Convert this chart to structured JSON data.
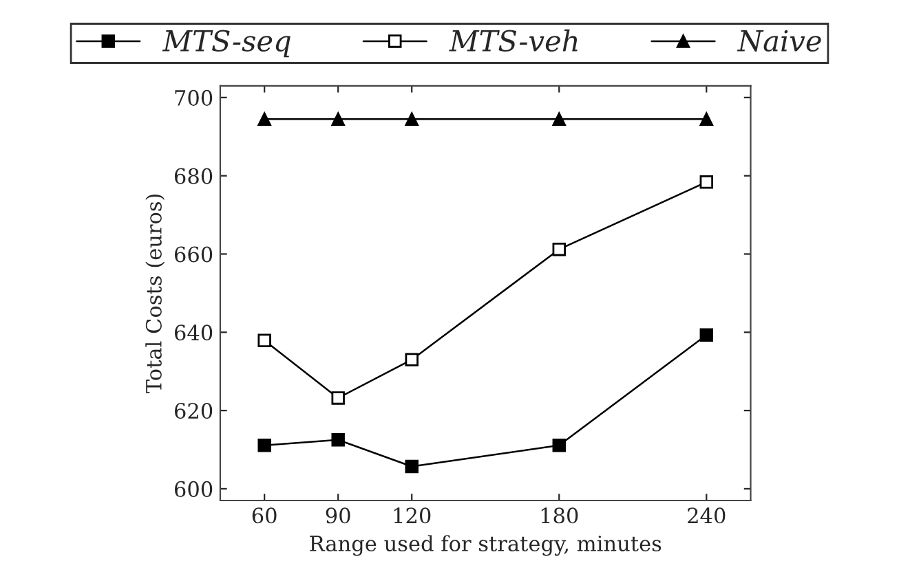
{
  "chart_data": {
    "type": "line",
    "xlabel": "Range used for strategy, minutes",
    "ylabel": "Total Costs (euros)",
    "x": [
      60,
      90,
      120,
      180,
      240
    ],
    "series": [
      {
        "name": "MTS-seq",
        "color": "#000000",
        "marker": "square",
        "values": [
          611.1,
          612.5,
          605.7,
          611.1,
          639.3
        ]
      },
      {
        "name": "MTS-veh",
        "color": "#000000",
        "marker": "square_open",
        "values": [
          637.9,
          623.2,
          633.0,
          661.2,
          678.4
        ]
      },
      {
        "name": "Naive",
        "color": "#000000",
        "marker": "triangle",
        "values": [
          694.5,
          694.5,
          694.5,
          694.5,
          694.5
        ]
      }
    ],
    "xlim": [
      42,
      258
    ],
    "ylim": [
      597,
      703
    ],
    "xticks": [
      60,
      90,
      120,
      180,
      240
    ],
    "yticks": [
      600,
      620,
      640,
      660,
      680,
      700
    ],
    "grid": false,
    "legend": "top",
    "line_style": "solid"
  }
}
